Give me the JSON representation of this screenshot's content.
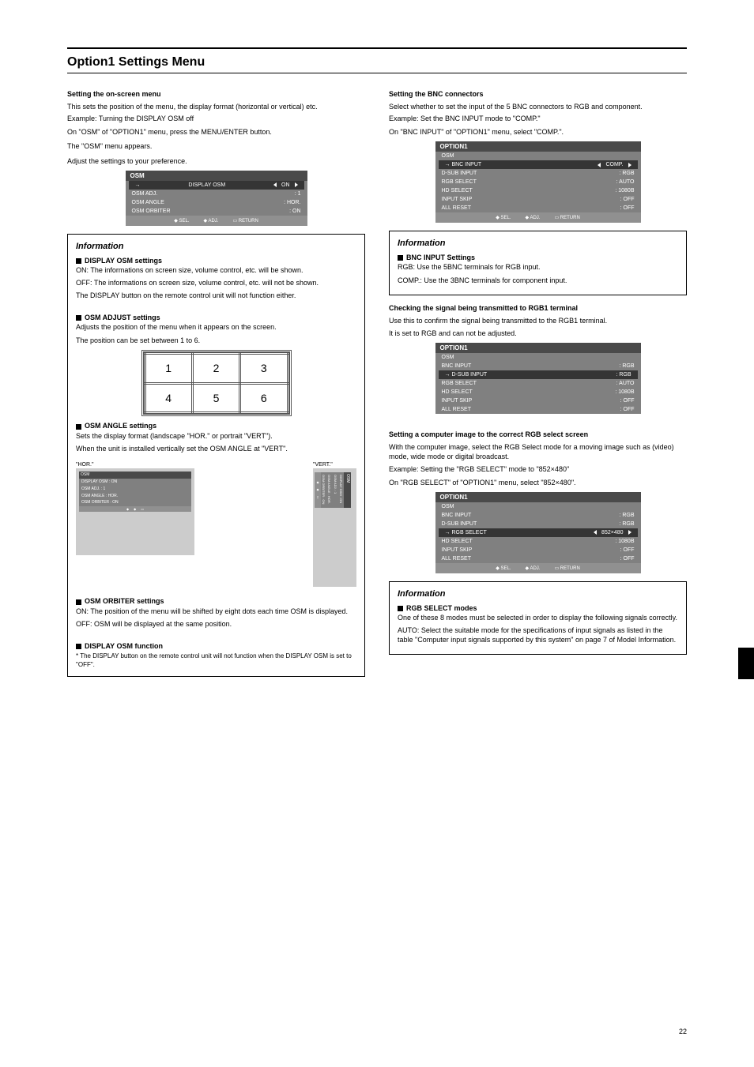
{
  "header": {
    "section_title": "Option1 Settings Menu"
  },
  "left": {
    "heading": "Setting the on-screen menu",
    "intro": "This sets the position of the menu, the display format (horizontal or vertical) etc.",
    "example": "Example: Turning the DISPLAY OSM off",
    "step1": "On \"OSM\" of \"OPTION1\" menu, press the MENU/ENTER button.",
    "step1b": "The \"OSM\" menu appears.",
    "step2": "Adjust the settings to your preference.",
    "menu1": {
      "title": "OSM",
      "r1": {
        "k": "DISPLAY OSM",
        "v": "ON",
        "hl": true
      },
      "r2": {
        "k": "OSM ADJ.",
        "v": "1"
      },
      "r3": {
        "k": "OSM ANGLE",
        "v": "HOR."
      },
      "r4": {
        "k": "OSM ORBITER",
        "v": "ON"
      },
      "f1": "SEL.",
      "f2": "ADJ.",
      "f3": "RETURN"
    },
    "info": {
      "title": "Information",
      "h1": "DISPLAY OSM settings",
      "on": "ON: The informations on screen size, volume control, etc. will be shown.",
      "off": "OFF: The informations on screen size, volume control, etc. will not be shown.",
      "off2": "The DISPLAY button on the remote control unit will not function either.",
      "h2": "OSM ADJUST settings",
      "adj_text": "Adjusts the position of the menu when it appears on the screen.",
      "adj_text2": "The position can be set between 1 to 6.",
      "grid": {
        "r1": [
          "1",
          "2",
          "3"
        ],
        "r2": [
          "4",
          "5",
          "6"
        ]
      },
      "h3": "OSM ANGLE settings",
      "angle_text": "Sets the display format (landscape \"HOR.\" or portrait \"VERT\").",
      "angle_text2": "When the unit is installed vertically set the OSM ANGLE at \"VERT\".",
      "hor_label": "\"HOR.\"",
      "vert_label": "\"VERT.\"",
      "mini": {
        "title": "OSM",
        "r": "DISPLAY OSM : ON",
        "r2": "OSM ADJ. : 1",
        "r3": "OSM ANGLE : HOR.",
        "r4": "OSM ORBITER : ON"
      },
      "h4": "OSM ORBITER settings",
      "orb_on": "ON: The position of the menu will be shifted by eight dots each time OSM is displayed.",
      "orb_off": "OFF: OSM will be displayed at the same position.",
      "h5": "DISPLAY OSM function",
      "note": "* The DISPLAY button on the remote control unit will not function when the DISPLAY OSM is set to \"OFF\"."
    }
  },
  "right": {
    "heading": "Setting the BNC connectors",
    "intro": "Select whether to set the input of the 5 BNC connectors to RGB and component.",
    "example": "Example: Set the BNC INPUT mode to \"COMP.\"",
    "step": "On \"BNC INPUT\" of \"OPTION1\" menu, select \"COMP.\".",
    "menu2": {
      "title": "OPTION1",
      "r1": {
        "k": "OSM",
        "v": ""
      },
      "r2": {
        "k": "BNC INPUT",
        "v": "COMP.",
        "hl": true
      },
      "r3": {
        "k": "D-SUB INPUT",
        "v": "RGB"
      },
      "r4": {
        "k": "RGB SELECT",
        "v": "AUTO"
      },
      "r5": {
        "k": "HD SELECT",
        "v": "1080B"
      },
      "r6": {
        "k": "INPUT SKIP",
        "v": "OFF"
      },
      "r7": {
        "k": "ALL RESET",
        "v": "OFF"
      },
      "f1": "SEL.",
      "f2": "ADJ.",
      "f3": "RETURN"
    },
    "info1": {
      "title": "Information",
      "h": "BNC INPUT Settings",
      "rgb": "RGB: Use the 5BNC terminals for RGB input.",
      "comp": "COMP.: Use the 3BNC terminals for component input."
    },
    "heading2": "Checking the signal being transmitted to RGB1 terminal",
    "intro2": "Use this to confirm the signal being transmitted to the RGB1 terminal.",
    "intro2b": "It is set to RGB and can not be adjusted.",
    "menu3": {
      "title": "OPTION1",
      "r1": {
        "k": "OSM",
        "v": ""
      },
      "r2": {
        "k": "BNC INPUT",
        "v": "RGB"
      },
      "r3": {
        "k": "D-SUB INPUT",
        "v": "RGB",
        "hl": true
      },
      "r4": {
        "k": "RGB SELECT",
        "v": "AUTO"
      },
      "r5": {
        "k": "HD SELECT",
        "v": "1080B"
      },
      "r6": {
        "k": "INPUT SKIP",
        "v": "OFF"
      },
      "r7": {
        "k": "ALL RESET",
        "v": "OFF"
      }
    },
    "heading3": "Setting a computer image to the correct RGB select screen",
    "intro3": "With the computer image, select the RGB Select mode for a moving image such as (video) mode, wide mode or digital broadcast.",
    "example3": "Example: Setting the \"RGB SELECT\" mode to \"852×480\"",
    "step3": "On \"RGB SELECT\" of \"OPTION1\" menu, select \"852×480\".",
    "menu4": {
      "title": "OPTION1",
      "r1": {
        "k": "OSM",
        "v": ""
      },
      "r2": {
        "k": "BNC INPUT",
        "v": "RGB"
      },
      "r3": {
        "k": "D-SUB INPUT",
        "v": "RGB"
      },
      "r4": {
        "k": "RGB SELECT",
        "v": "852×480",
        "hl": true
      },
      "r5": {
        "k": "HD SELECT",
        "v": "1080B"
      },
      "r6": {
        "k": "INPUT SKIP",
        "v": "OFF"
      },
      "r7": {
        "k": "ALL RESET",
        "v": "OFF"
      },
      "f1": "SEL.",
      "f2": "ADJ.",
      "f3": "RETURN"
    },
    "info2": {
      "title": "Information",
      "h": "RGB SELECT modes",
      "text": "One of these 8 modes must be selected in order to display the following signals correctly.",
      "auto": "AUTO: Select the suitable mode for the specifications of input signals as listed in the table \"Computer input signals supported by this system\" on page 7 of Model Information."
    }
  },
  "page_number": "22"
}
